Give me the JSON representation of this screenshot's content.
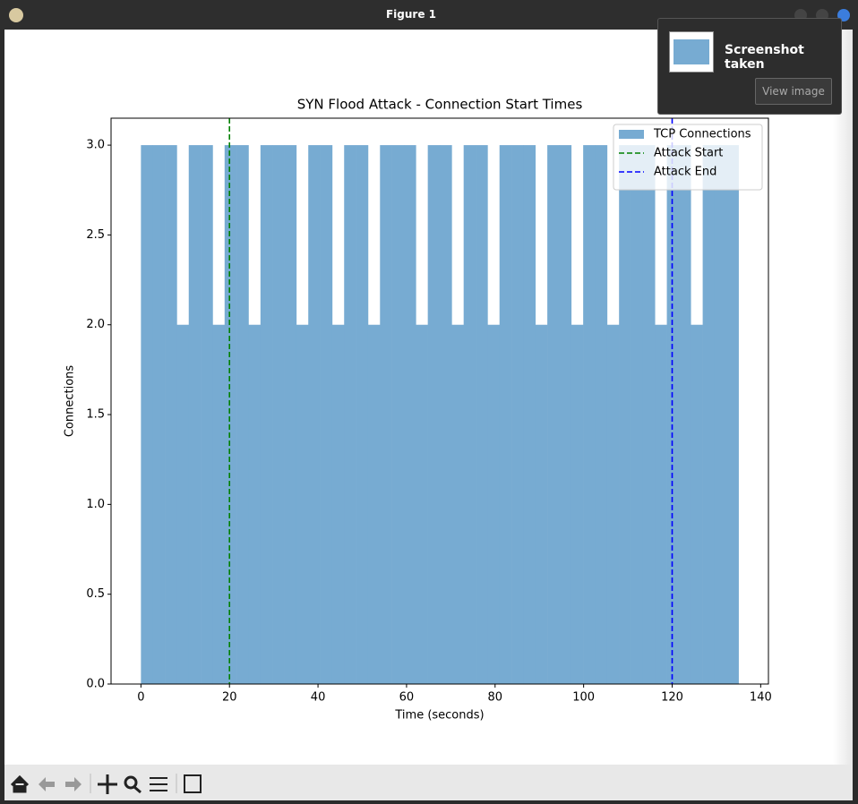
{
  "window": {
    "title": "Figure 1"
  },
  "notification": {
    "title": "Screenshot taken",
    "button": "View image"
  },
  "chart_data": {
    "type": "histogram",
    "title": "SYN Flood Attack - Connection Start Times",
    "xlabel": "Time (seconds)",
    "ylabel": "Connections",
    "bins": [
      0,
      2.7,
      5.4,
      8.1,
      10.8,
      13.5,
      16.2,
      18.9,
      21.6,
      24.3,
      27,
      29.7,
      32.4,
      35.1,
      37.8,
      40.5,
      43.2,
      45.9,
      48.6,
      51.3,
      54,
      56.7,
      59.4,
      62.1,
      64.8,
      67.5,
      70.2,
      72.9,
      75.6,
      78.3,
      81,
      83.7,
      86.4,
      89.1,
      91.8,
      94.5,
      97.2,
      99.9,
      102.6,
      105.3,
      108,
      110.7,
      113.4,
      116.1,
      118.8,
      121.5,
      124.2,
      126.9,
      129.6,
      132.3,
      135
    ],
    "series": [
      {
        "name": "TCP Connections",
        "color": "#77abd2",
        "values": [
          3,
          3,
          3,
          2,
          3,
          3,
          2,
          3,
          3,
          2,
          3,
          3,
          3,
          2,
          3,
          3,
          2,
          3,
          3,
          2,
          3,
          3,
          3,
          2,
          3,
          3,
          2,
          3,
          3,
          2,
          3,
          3,
          3,
          2,
          3,
          3,
          2,
          3,
          3,
          2,
          3,
          3,
          3,
          2,
          3,
          3,
          2,
          3,
          3,
          3
        ]
      }
    ],
    "vlines": [
      {
        "name": "Attack Start",
        "x": 20,
        "color": "#008000"
      },
      {
        "name": "Attack End",
        "x": 120,
        "color": "#0000ff"
      }
    ],
    "xlim": [
      -6.75,
      141.75
    ],
    "xticks": [
      0,
      20,
      40,
      60,
      80,
      100,
      120,
      140
    ],
    "ylim": [
      0,
      3.15
    ],
    "yticks": [
      {
        "value": 0,
        "label": "0.0"
      },
      {
        "value": 0.5,
        "label": "0.5"
      },
      {
        "value": 1,
        "label": "1.0"
      },
      {
        "value": 1.5,
        "label": "1.5"
      },
      {
        "value": 2,
        "label": "2.0"
      },
      {
        "value": 2.5,
        "label": "2.5"
      },
      {
        "value": 3,
        "label": "3.0"
      }
    ],
    "legend": "upper right"
  }
}
